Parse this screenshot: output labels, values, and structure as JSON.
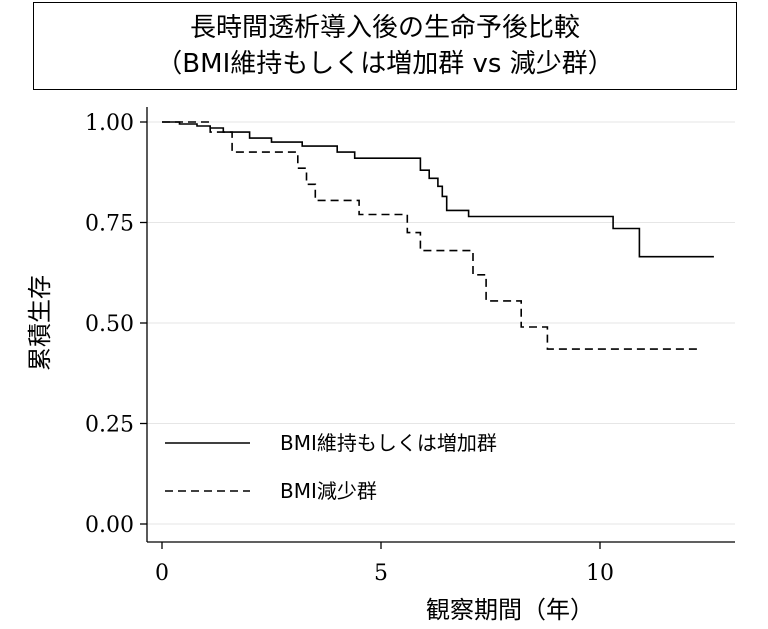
{
  "chart_data": {
    "type": "line",
    "title": "長時間透析導入後の生命予後比較",
    "subtitle": "（BMI維持もしくは増加群 vs 減少群）",
    "xlabel": "観察期間（年）",
    "ylabel": "累積生存",
    "xlim": [
      0,
      13
    ],
    "ylim": [
      0,
      1
    ],
    "x_ticks": [
      0,
      5,
      10
    ],
    "x_tick_labels": [
      "0",
      "5",
      "10"
    ],
    "y_ticks": [
      0,
      0.25,
      0.5,
      0.75,
      1.0
    ],
    "y_tick_labels": [
      "0.00",
      "0.25",
      "0.50",
      "0.75",
      "1.00"
    ],
    "grid": "horizontal",
    "legend_position": "bottom-left",
    "series": [
      {
        "name": "BMI維持もしくは増加群",
        "style": "solid",
        "color": "#000000",
        "points": [
          [
            0,
            1.0
          ],
          [
            0.4,
            1.0
          ],
          [
            0.4,
            0.995
          ],
          [
            0.8,
            0.995
          ],
          [
            0.8,
            0.99
          ],
          [
            1.1,
            0.99
          ],
          [
            1.1,
            0.985
          ],
          [
            1.4,
            0.985
          ],
          [
            1.4,
            0.975
          ],
          [
            2.0,
            0.975
          ],
          [
            2.0,
            0.96
          ],
          [
            2.5,
            0.96
          ],
          [
            2.5,
            0.95
          ],
          [
            3.2,
            0.95
          ],
          [
            3.2,
            0.94
          ],
          [
            4.0,
            0.94
          ],
          [
            4.0,
            0.925
          ],
          [
            4.4,
            0.925
          ],
          [
            4.4,
            0.91
          ],
          [
            5.9,
            0.91
          ],
          [
            5.9,
            0.88
          ],
          [
            6.1,
            0.88
          ],
          [
            6.1,
            0.86
          ],
          [
            6.3,
            0.86
          ],
          [
            6.3,
            0.84
          ],
          [
            6.4,
            0.84
          ],
          [
            6.4,
            0.815
          ],
          [
            6.5,
            0.815
          ],
          [
            6.5,
            0.78
          ],
          [
            7.0,
            0.78
          ],
          [
            7.0,
            0.765
          ],
          [
            10.3,
            0.765
          ],
          [
            10.3,
            0.735
          ],
          [
            10.9,
            0.735
          ],
          [
            10.9,
            0.665
          ],
          [
            12.6,
            0.665
          ]
        ]
      },
      {
        "name": "BMI減少群",
        "style": "dashed",
        "color": "#000000",
        "points": [
          [
            0,
            1.0
          ],
          [
            1.1,
            1.0
          ],
          [
            1.1,
            0.975
          ],
          [
            1.6,
            0.975
          ],
          [
            1.6,
            0.925
          ],
          [
            3.1,
            0.925
          ],
          [
            3.1,
            0.885
          ],
          [
            3.3,
            0.885
          ],
          [
            3.3,
            0.845
          ],
          [
            3.5,
            0.845
          ],
          [
            3.5,
            0.805
          ],
          [
            4.5,
            0.805
          ],
          [
            4.5,
            0.77
          ],
          [
            5.6,
            0.77
          ],
          [
            5.6,
            0.725
          ],
          [
            5.9,
            0.725
          ],
          [
            5.9,
            0.68
          ],
          [
            7.1,
            0.68
          ],
          [
            7.1,
            0.62
          ],
          [
            7.4,
            0.62
          ],
          [
            7.4,
            0.555
          ],
          [
            8.2,
            0.555
          ],
          [
            8.2,
            0.49
          ],
          [
            8.8,
            0.49
          ],
          [
            8.8,
            0.435
          ],
          [
            12.3,
            0.435
          ]
        ]
      }
    ]
  }
}
